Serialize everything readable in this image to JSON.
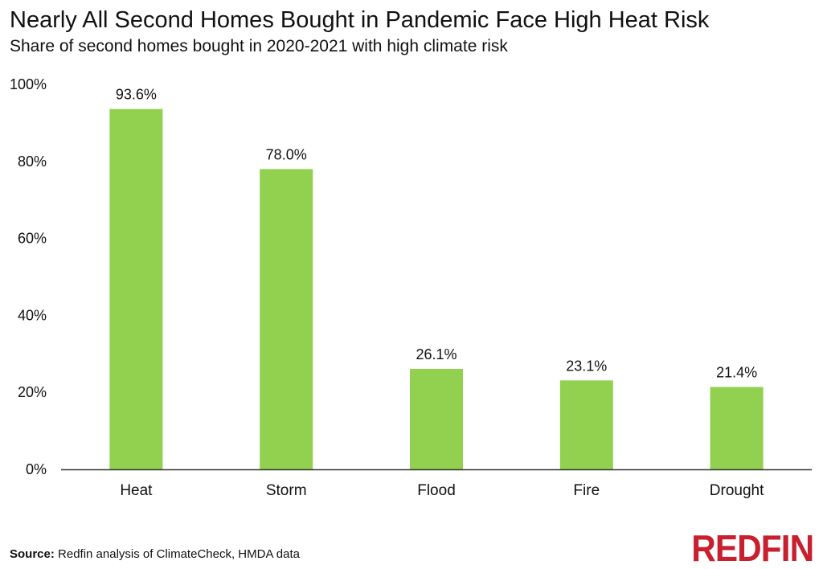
{
  "title": "Nearly All Second Homes Bought in Pandemic Face High Heat Risk",
  "subtitle": "Share of second homes bought in 2020-2021 with high climate risk",
  "source_label": "Source:",
  "source_text": "Redfin analysis of ClimateCheck, HMDA data",
  "logo_text": "REDFIN",
  "colors": {
    "bar": "#92d050",
    "logo": "#c8202f",
    "axis": "#333333"
  },
  "chart_data": {
    "type": "bar",
    "categories": [
      "Heat",
      "Storm",
      "Flood",
      "Fire",
      "Drought"
    ],
    "values": [
      93.6,
      78.0,
      26.1,
      23.1,
      21.4
    ],
    "value_labels": [
      "93.6%",
      "78.0%",
      "26.1%",
      "23.1%",
      "21.4%"
    ],
    "y_ticks": [
      0,
      20,
      40,
      60,
      80,
      100
    ],
    "y_tick_labels": [
      "0%",
      "20%",
      "40%",
      "60%",
      "80%",
      "100%"
    ],
    "ylim": [
      0,
      100
    ],
    "grid": false,
    "title": "Nearly All Second Homes Bought in Pandemic Face High Heat Risk",
    "subtitle": "Share of second homes bought in 2020-2021 with high climate risk"
  }
}
